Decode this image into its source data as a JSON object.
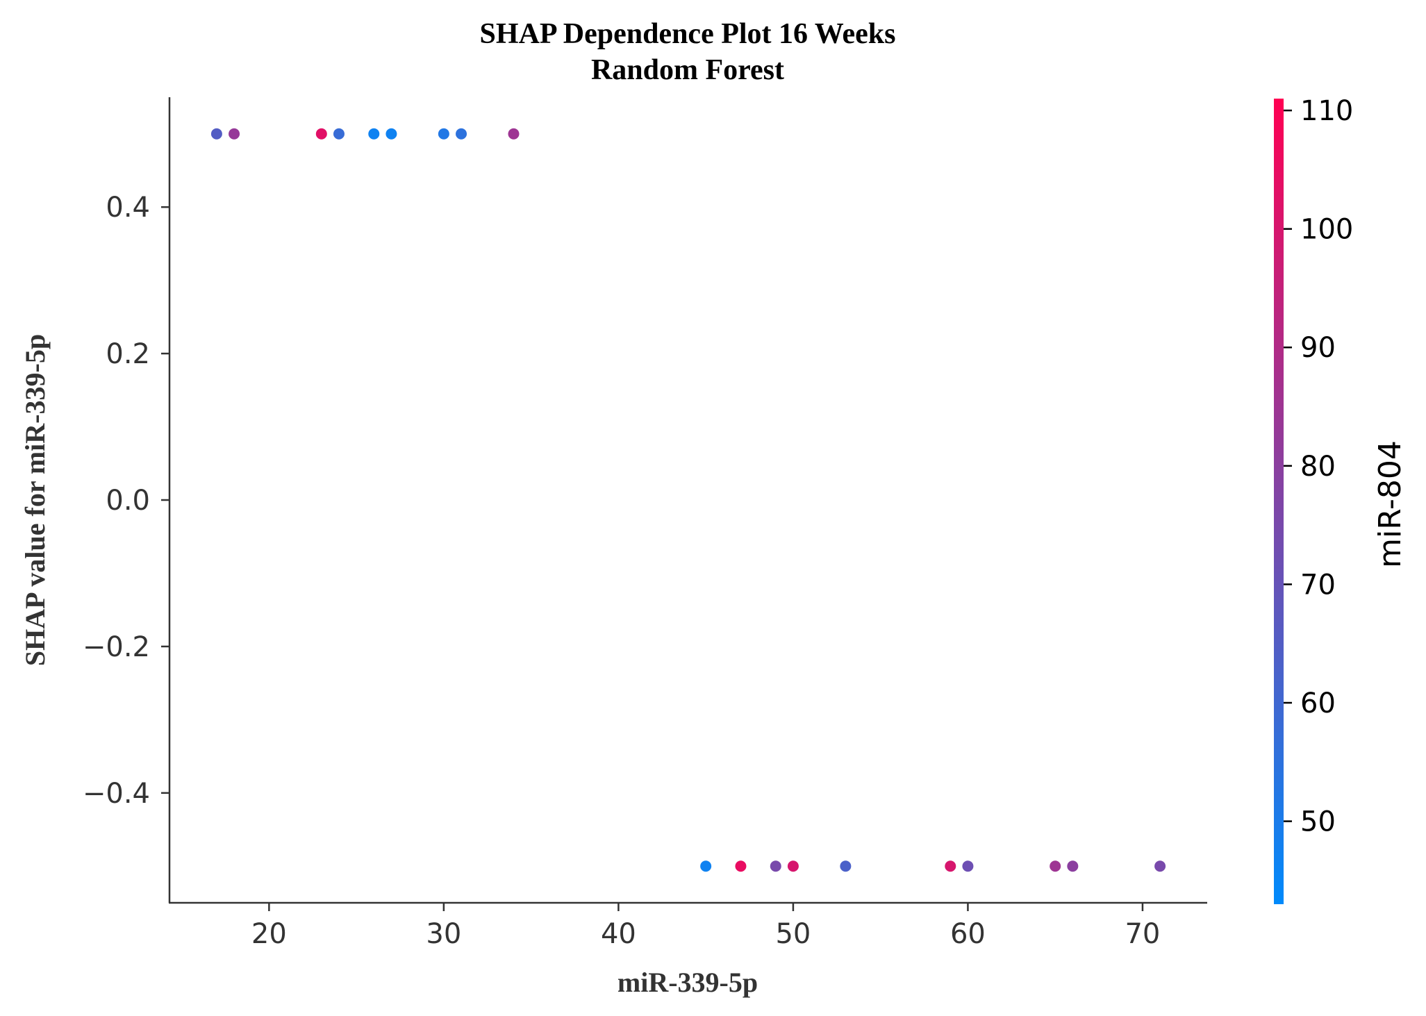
{
  "chart_data": {
    "type": "scatter",
    "title": "SHAP Dependence Plot 16 Weeks",
    "subtitle": "Random Forest",
    "xlabel": "miR-339-5p",
    "ylabel": "SHAP value for miR-339-5p",
    "xlim": [
      14.3,
      73.7
    ],
    "ylim": [
      -0.55,
      0.55
    ],
    "xticks": [
      20,
      30,
      40,
      50,
      60,
      70
    ],
    "xtick_labels": [
      "20",
      "30",
      "40",
      "50",
      "60",
      "70"
    ],
    "yticks": [
      -0.4,
      -0.2,
      0.0,
      0.2,
      0.4
    ],
    "ytick_labels": [
      "−0.4",
      "−0.2",
      "0.0",
      "0.2",
      "0.4"
    ],
    "grid": false,
    "colorbar": {
      "label": "miR-804",
      "range": [
        43,
        111
      ],
      "ticks": [
        50,
        60,
        70,
        80,
        90,
        100,
        110
      ],
      "tick_labels": [
        "50",
        "60",
        "70",
        "80",
        "90",
        "100",
        "110"
      ],
      "colors": [
        "#008afb",
        "#ff0052"
      ]
    },
    "points": [
      {
        "x": 17,
        "y": 0.5,
        "c": 65
      },
      {
        "x": 18,
        "y": 0.5,
        "c": 83
      },
      {
        "x": 23,
        "y": 0.5,
        "c": 103
      },
      {
        "x": 24,
        "y": 0.5,
        "c": 58
      },
      {
        "x": 26,
        "y": 0.5,
        "c": 47
      },
      {
        "x": 27,
        "y": 0.5,
        "c": 47
      },
      {
        "x": 30,
        "y": 0.5,
        "c": 52
      },
      {
        "x": 31,
        "y": 0.5,
        "c": 55
      },
      {
        "x": 34,
        "y": 0.5,
        "c": 85
      },
      {
        "x": 45,
        "y": -0.5,
        "c": 47
      },
      {
        "x": 47,
        "y": -0.5,
        "c": 105
      },
      {
        "x": 49,
        "y": -0.5,
        "c": 75
      },
      {
        "x": 50,
        "y": -0.5,
        "c": 100
      },
      {
        "x": 53,
        "y": -0.5,
        "c": 63
      },
      {
        "x": 59,
        "y": -0.5,
        "c": 100
      },
      {
        "x": 60,
        "y": -0.5,
        "c": 72
      },
      {
        "x": 65,
        "y": -0.5,
        "c": 85
      },
      {
        "x": 66,
        "y": -0.5,
        "c": 80
      },
      {
        "x": 71,
        "y": -0.5,
        "c": 75
      }
    ]
  }
}
